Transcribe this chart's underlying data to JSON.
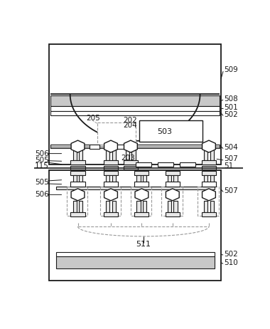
{
  "bg_color": "#ffffff",
  "line_color": "#1a1a1a",
  "dashed_color": "#999999",
  "fig_width": 3.8,
  "fig_height": 4.62,
  "dpi": 100
}
